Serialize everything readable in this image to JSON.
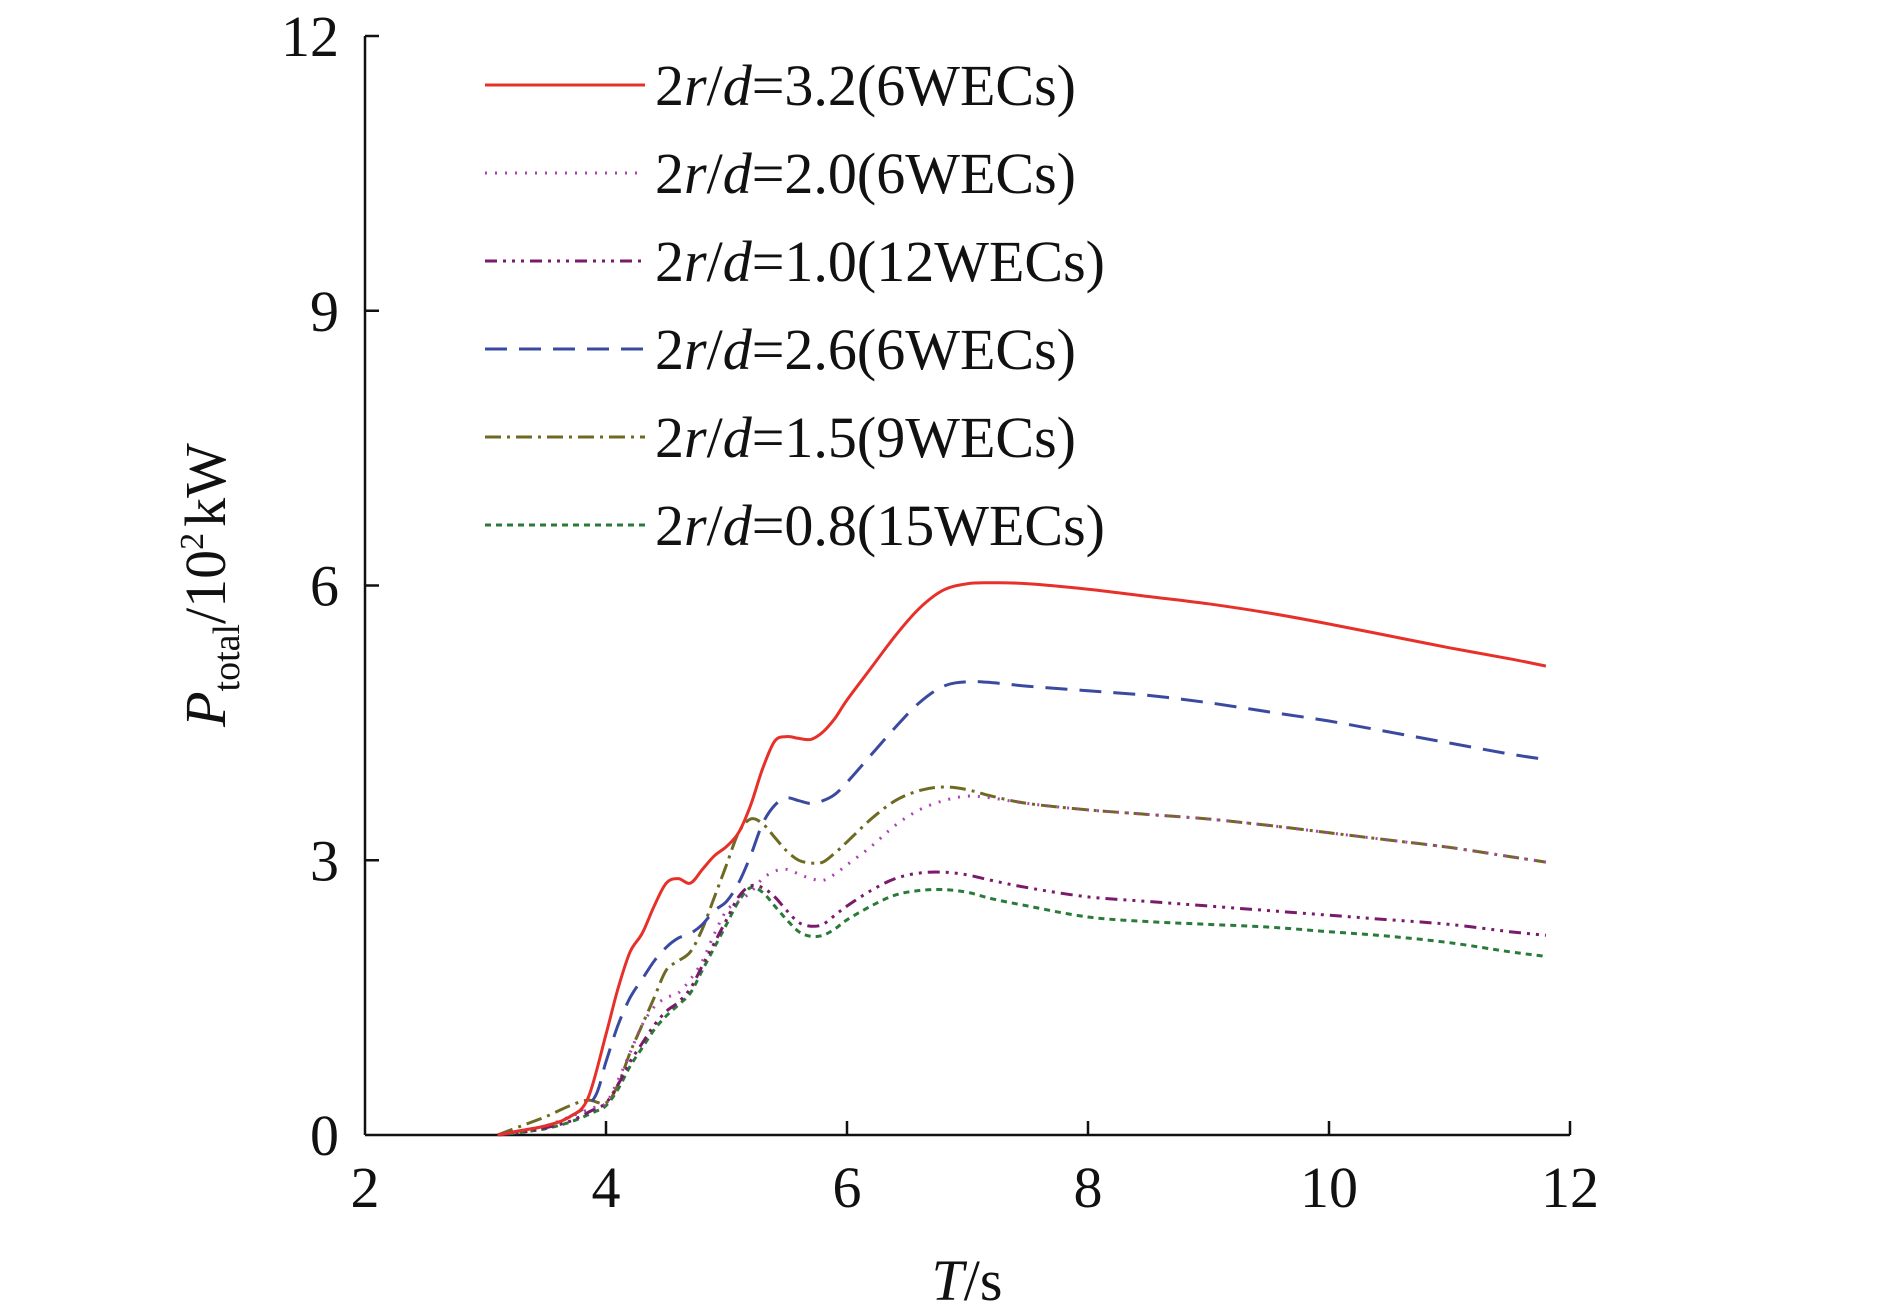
{
  "chart_data": {
    "type": "line",
    "title": "",
    "xlabel": {
      "symbol": "T",
      "unit": "/s"
    },
    "ylabel": {
      "symbol": "P",
      "subscript": "total",
      "unit_prefix": "/10",
      "superscript": "2",
      "unit": "kW"
    },
    "xlim": [
      2,
      12
    ],
    "ylim": [
      0,
      12
    ],
    "x_ticks": [
      2,
      4,
      6,
      8,
      10,
      12
    ],
    "y_ticks": [
      0,
      3,
      6,
      9,
      12
    ],
    "legend_position": "top-left",
    "grid": false,
    "series": [
      {
        "name": "2r/d=3.2(6WECs)",
        "label": {
          "a": "2",
          "b": "r",
          "c": "/",
          "d": "d",
          "e": "=3.2(6WECs)"
        },
        "color": "#e8302a",
        "dash": "solid",
        "x": [
          3.1,
          3.3,
          3.5,
          3.7,
          3.85,
          4.0,
          4.1,
          4.2,
          4.3,
          4.4,
          4.5,
          4.6,
          4.7,
          4.8,
          4.9,
          5.0,
          5.1,
          5.2,
          5.3,
          5.4,
          5.5,
          5.6,
          5.7,
          5.8,
          5.9,
          6.0,
          6.2,
          6.4,
          6.6,
          6.8,
          7.0,
          7.2,
          7.5,
          8.0,
          8.5,
          9.0,
          9.5,
          10.0,
          10.5,
          11.0,
          11.5,
          11.8
        ],
        "y": [
          0.0,
          0.05,
          0.1,
          0.2,
          0.4,
          1.1,
          1.6,
          2.0,
          2.2,
          2.5,
          2.75,
          2.8,
          2.75,
          2.9,
          3.05,
          3.15,
          3.3,
          3.6,
          4.0,
          4.3,
          4.35,
          4.33,
          4.32,
          4.4,
          4.55,
          4.75,
          5.1,
          5.45,
          5.75,
          5.95,
          6.02,
          6.03,
          6.02,
          5.96,
          5.88,
          5.8,
          5.7,
          5.58,
          5.45,
          5.32,
          5.2,
          5.12
        ]
      },
      {
        "name": "2r/d=2.0(6WECs)",
        "label": {
          "a": "2",
          "b": "r",
          "c": "/",
          "d": "d",
          "e": "=2.0(6WECs)"
        },
        "color": "#b040b0",
        "dash": "2 8",
        "x": [
          3.1,
          3.3,
          3.5,
          3.7,
          3.9,
          4.0,
          4.1,
          4.2,
          4.3,
          4.4,
          4.5,
          4.6,
          4.7,
          4.8,
          4.9,
          5.0,
          5.1,
          5.2,
          5.3,
          5.4,
          5.5,
          5.6,
          5.7,
          5.8,
          5.9,
          6.0,
          6.2,
          6.4,
          6.6,
          6.8,
          7.0,
          7.2,
          7.5,
          8.0,
          8.5,
          9.0,
          9.5,
          10.0,
          10.5,
          11.0,
          11.5,
          11.8
        ],
        "y": [
          0.0,
          0.05,
          0.1,
          0.2,
          0.3,
          0.35,
          0.6,
          0.9,
          1.2,
          1.4,
          1.5,
          1.55,
          1.7,
          1.9,
          2.2,
          2.45,
          2.55,
          2.65,
          2.8,
          2.88,
          2.9,
          2.85,
          2.8,
          2.78,
          2.85,
          2.95,
          3.15,
          3.38,
          3.55,
          3.65,
          3.7,
          3.68,
          3.62,
          3.55,
          3.5,
          3.45,
          3.38,
          3.3,
          3.22,
          3.14,
          3.04,
          2.98
        ]
      },
      {
        "name": "2r/d=1.0(12WECs)",
        "label": {
          "a": "2",
          "b": "r",
          "c": "/",
          "d": "d",
          "e": "=1.0(12WECs)"
        },
        "color": "#7a1a6a",
        "dash": "12 6 3 6 3 6 3 6",
        "x": [
          3.1,
          3.3,
          3.5,
          3.7,
          3.9,
          4.0,
          4.1,
          4.2,
          4.3,
          4.4,
          4.5,
          4.6,
          4.7,
          4.8,
          4.9,
          5.0,
          5.1,
          5.2,
          5.3,
          5.4,
          5.5,
          5.6,
          5.7,
          5.8,
          5.9,
          6.0,
          6.2,
          6.4,
          6.6,
          6.8,
          7.0,
          7.2,
          7.5,
          8.0,
          8.5,
          9.0,
          9.5,
          10.0,
          10.5,
          11.0,
          11.5,
          11.8
        ],
        "y": [
          0.0,
          0.03,
          0.08,
          0.15,
          0.28,
          0.35,
          0.55,
          0.8,
          1.0,
          1.2,
          1.35,
          1.45,
          1.6,
          1.85,
          2.1,
          2.35,
          2.6,
          2.72,
          2.7,
          2.6,
          2.45,
          2.32,
          2.28,
          2.3,
          2.4,
          2.5,
          2.67,
          2.8,
          2.86,
          2.87,
          2.84,
          2.78,
          2.7,
          2.6,
          2.55,
          2.5,
          2.45,
          2.4,
          2.35,
          2.3,
          2.22,
          2.18
        ]
      },
      {
        "name": "2r/d=2.6(6WECs)",
        "label": {
          "a": "2",
          "b": "r",
          "c": "/",
          "d": "d",
          "e": "=2.6(6WECs)"
        },
        "color": "#3a4aa0",
        "dash": "22 12",
        "x": [
          3.1,
          3.3,
          3.5,
          3.7,
          3.9,
          4.0,
          4.1,
          4.2,
          4.3,
          4.4,
          4.5,
          4.6,
          4.7,
          4.8,
          4.9,
          5.0,
          5.1,
          5.2,
          5.3,
          5.4,
          5.5,
          5.6,
          5.7,
          5.8,
          5.9,
          6.0,
          6.2,
          6.4,
          6.6,
          6.8,
          7.0,
          7.2,
          7.5,
          8.0,
          8.5,
          9.0,
          9.5,
          10.0,
          10.5,
          11.0,
          11.5,
          11.8
        ],
        "y": [
          0.0,
          0.05,
          0.1,
          0.2,
          0.4,
          0.8,
          1.2,
          1.5,
          1.7,
          1.9,
          2.05,
          2.15,
          2.2,
          2.3,
          2.45,
          2.55,
          2.75,
          3.05,
          3.4,
          3.6,
          3.68,
          3.65,
          3.62,
          3.65,
          3.72,
          3.85,
          4.15,
          4.45,
          4.72,
          4.9,
          4.95,
          4.94,
          4.9,
          4.85,
          4.8,
          4.72,
          4.62,
          4.52,
          4.4,
          4.28,
          4.16,
          4.1
        ]
      },
      {
        "name": "2r/d=1.5(9WECs)",
        "label": {
          "a": "2",
          "b": "r",
          "c": "/",
          "d": "d",
          "e": "=1.5(9WECs)"
        },
        "color": "#6e6a22",
        "dash": "16 6 3 6",
        "x": [
          3.1,
          3.3,
          3.5,
          3.7,
          3.85,
          4.0,
          4.1,
          4.2,
          4.3,
          4.4,
          4.5,
          4.6,
          4.7,
          4.8,
          4.9,
          5.0,
          5.1,
          5.2,
          5.3,
          5.4,
          5.5,
          5.6,
          5.7,
          5.8,
          5.9,
          6.0,
          6.2,
          6.4,
          6.6,
          6.8,
          7.0,
          7.2,
          7.5,
          8.0,
          8.5,
          9.0,
          9.5,
          10.0,
          10.5,
          11.0,
          11.5,
          11.8
        ],
        "y": [
          0.0,
          0.1,
          0.2,
          0.32,
          0.38,
          0.35,
          0.55,
          0.9,
          1.2,
          1.5,
          1.8,
          1.9,
          2.0,
          2.25,
          2.6,
          2.95,
          3.3,
          3.45,
          3.4,
          3.25,
          3.1,
          3.0,
          2.97,
          2.98,
          3.08,
          3.2,
          3.45,
          3.65,
          3.76,
          3.8,
          3.77,
          3.7,
          3.62,
          3.55,
          3.5,
          3.45,
          3.38,
          3.3,
          3.22,
          3.14,
          3.04,
          2.98
        ]
      },
      {
        "name": "2r/d=0.8(15WECs)",
        "label": {
          "a": "2",
          "b": "r",
          "c": "/",
          "d": "d",
          "e": "=0.8(15WECs)"
        },
        "color": "#2a7a3a",
        "dash": "6 5",
        "x": [
          3.1,
          3.3,
          3.5,
          3.7,
          3.9,
          4.0,
          4.1,
          4.2,
          4.3,
          4.4,
          4.5,
          4.6,
          4.7,
          4.8,
          4.9,
          5.0,
          5.1,
          5.2,
          5.3,
          5.4,
          5.5,
          5.6,
          5.7,
          5.8,
          5.9,
          6.0,
          6.2,
          6.4,
          6.6,
          6.8,
          7.0,
          7.2,
          7.5,
          8.0,
          8.5,
          9.0,
          9.5,
          10.0,
          10.5,
          11.0,
          11.5,
          11.8
        ],
        "y": [
          0.0,
          0.03,
          0.07,
          0.14,
          0.25,
          0.32,
          0.5,
          0.75,
          0.95,
          1.15,
          1.3,
          1.42,
          1.55,
          1.8,
          2.05,
          2.3,
          2.55,
          2.7,
          2.65,
          2.5,
          2.35,
          2.22,
          2.17,
          2.18,
          2.25,
          2.35,
          2.5,
          2.62,
          2.67,
          2.68,
          2.65,
          2.58,
          2.5,
          2.38,
          2.33,
          2.3,
          2.27,
          2.22,
          2.17,
          2.1,
          2.0,
          1.95
        ]
      }
    ]
  }
}
